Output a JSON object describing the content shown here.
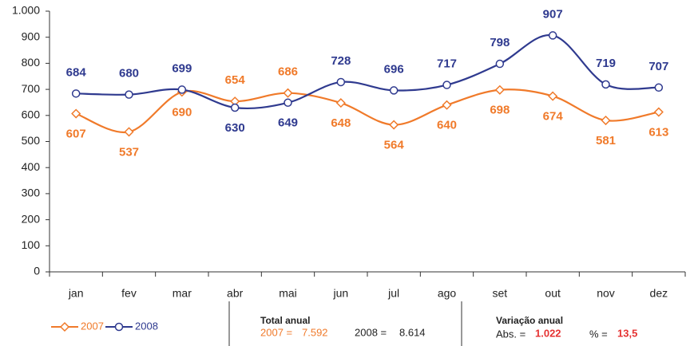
{
  "chart_data": {
    "type": "line",
    "categories": [
      "jan",
      "fev",
      "mar",
      "abr",
      "mai",
      "jun",
      "jul",
      "ago",
      "set",
      "out",
      "nov",
      "dez"
    ],
    "series": [
      {
        "name": "2007",
        "color": "#f07a2a",
        "marker": "diamond",
        "values": [
          607,
          537,
          690,
          654,
          686,
          648,
          564,
          640,
          698,
          674,
          581,
          613
        ]
      },
      {
        "name": "2008",
        "color": "#2f3a8f",
        "marker": "circle",
        "values": [
          684,
          680,
          699,
          630,
          649,
          728,
          696,
          717,
          798,
          907,
          719,
          707
        ]
      }
    ],
    "ylim": [
      0,
      1000
    ],
    "yticks": [
      0,
      100,
      200,
      300,
      400,
      500,
      600,
      700,
      800,
      900,
      {
        "value": 1000,
        "label": "1.000"
      }
    ],
    "grid": false,
    "legend": "bottom-left",
    "total_anual": {
      "title": "Total anual",
      "items": [
        {
          "label": "2007 =",
          "value": "7.592"
        },
        {
          "label": "2008 =",
          "value": "8.614"
        }
      ]
    },
    "variacao_anual": {
      "title": "Variação anual",
      "items": [
        {
          "label": "Abs. =",
          "value": "1.022"
        },
        {
          "label": "% =",
          "value": "13,5"
        }
      ]
    }
  }
}
